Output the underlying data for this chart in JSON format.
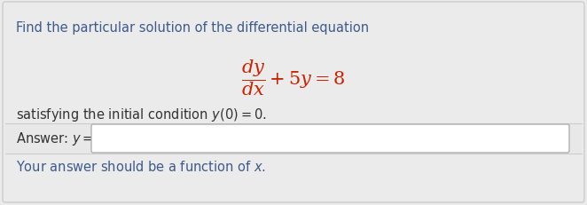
{
  "bg_color": "#ebebeb",
  "title_text": "Find the particular solution of the differential equation",
  "title_color": "#3d5a8a",
  "equation_color": "#cc2200",
  "normal_text_color": "#333333",
  "footer_color": "#3d5a8a",
  "border_color": "#cccccc",
  "input_border_color": "#b0b0b0",
  "title_fontsize": 10.5,
  "body_fontsize": 10.5,
  "eq_fontsize": 15,
  "figwidth": 6.62,
  "figheight": 2.32,
  "dpi": 100
}
